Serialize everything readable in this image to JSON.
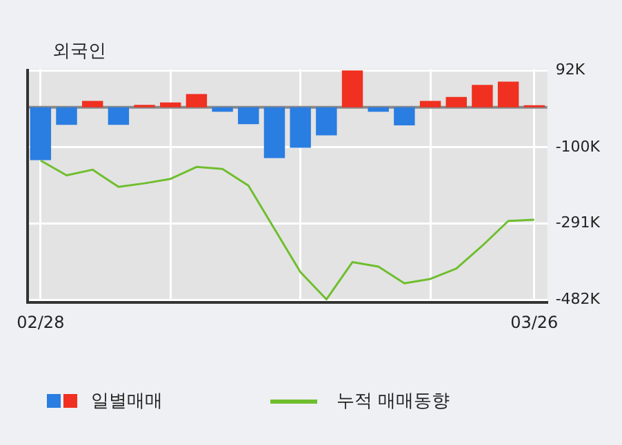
{
  "chart_data": {
    "type": "bar",
    "title": "외국인",
    "categories": [
      "02/28",
      null,
      null,
      null,
      null,
      null,
      null,
      null,
      null,
      null,
      null,
      null,
      null,
      null,
      null,
      null,
      null,
      null,
      null,
      "03/26"
    ],
    "series": [
      {
        "name": "일별매매",
        "colors": [
          "#2a7de1",
          "#2a7de1",
          "#f03020",
          "#2a7de1",
          "#f03020",
          "#f03020",
          "#f03020",
          "#2a7de1",
          "#2a7de1",
          "#2a7de1",
          "#2a7de1",
          "#2a7de1",
          "#f03020",
          "#2a7de1",
          "#2a7de1",
          "#f03020",
          "#f03020",
          "#f03020",
          "#f03020",
          "#f03020"
        ],
        "values": [
          -132,
          -44,
          16,
          -44,
          6,
          12,
          33,
          -11,
          -42,
          -127,
          -101,
          -70,
          92,
          -11,
          -45,
          16,
          26,
          56,
          64,
          5
        ]
      },
      {
        "type": "line",
        "name": "누적 매매동향",
        "color": "#6fbe2e",
        "values": [
          -133,
          -170,
          -156,
          -199,
          -190,
          -179,
          -149,
          -154,
          -196,
          -304,
          -412,
          -480,
          -387,
          -398,
          -440,
          -429,
          -403,
          -346,
          -284,
          -281
        ]
      }
    ],
    "ylim": [
      -488,
      96
    ],
    "yticks": [
      {
        "value": 92,
        "label": "92K"
      },
      {
        "value": -100,
        "label": "-100K"
      },
      {
        "value": -291,
        "label": "-291K"
      },
      {
        "value": -482,
        "label": "-482K"
      }
    ],
    "ref_lines": [
      {
        "axis": "y",
        "value": 0,
        "color": "#888888"
      }
    ],
    "grid": true,
    "legend": "bottom",
    "marker": "none"
  }
}
